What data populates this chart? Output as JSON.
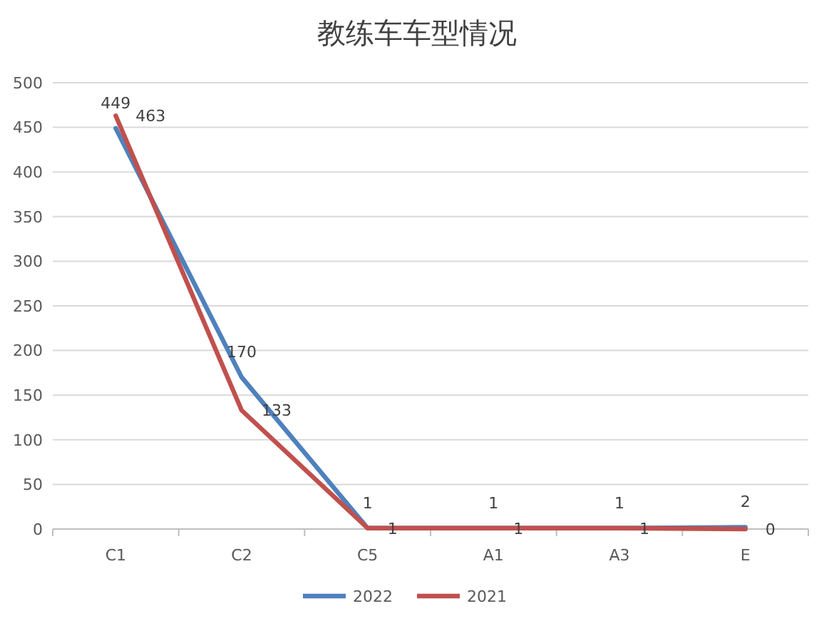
{
  "chart_data": {
    "type": "line",
    "title": "教练车车型情况",
    "categories": [
      "C1",
      "C2",
      "C5",
      "A1",
      "A3",
      "E"
    ],
    "series": [
      {
        "name": "2022",
        "color": "#4f81bd",
        "values": [
          449,
          170,
          1,
          1,
          1,
          2
        ]
      },
      {
        "name": "2021",
        "color": "#c0504d",
        "values": [
          463,
          133,
          1,
          1,
          1,
          0
        ]
      }
    ],
    "ylim": [
      0,
      500
    ],
    "yticks": [
      0,
      50,
      100,
      150,
      200,
      250,
      300,
      350,
      400,
      450,
      500
    ],
    "grid": "y",
    "legend": "bottom",
    "data_labels": true,
    "marker": "none",
    "line_style": "solid"
  }
}
